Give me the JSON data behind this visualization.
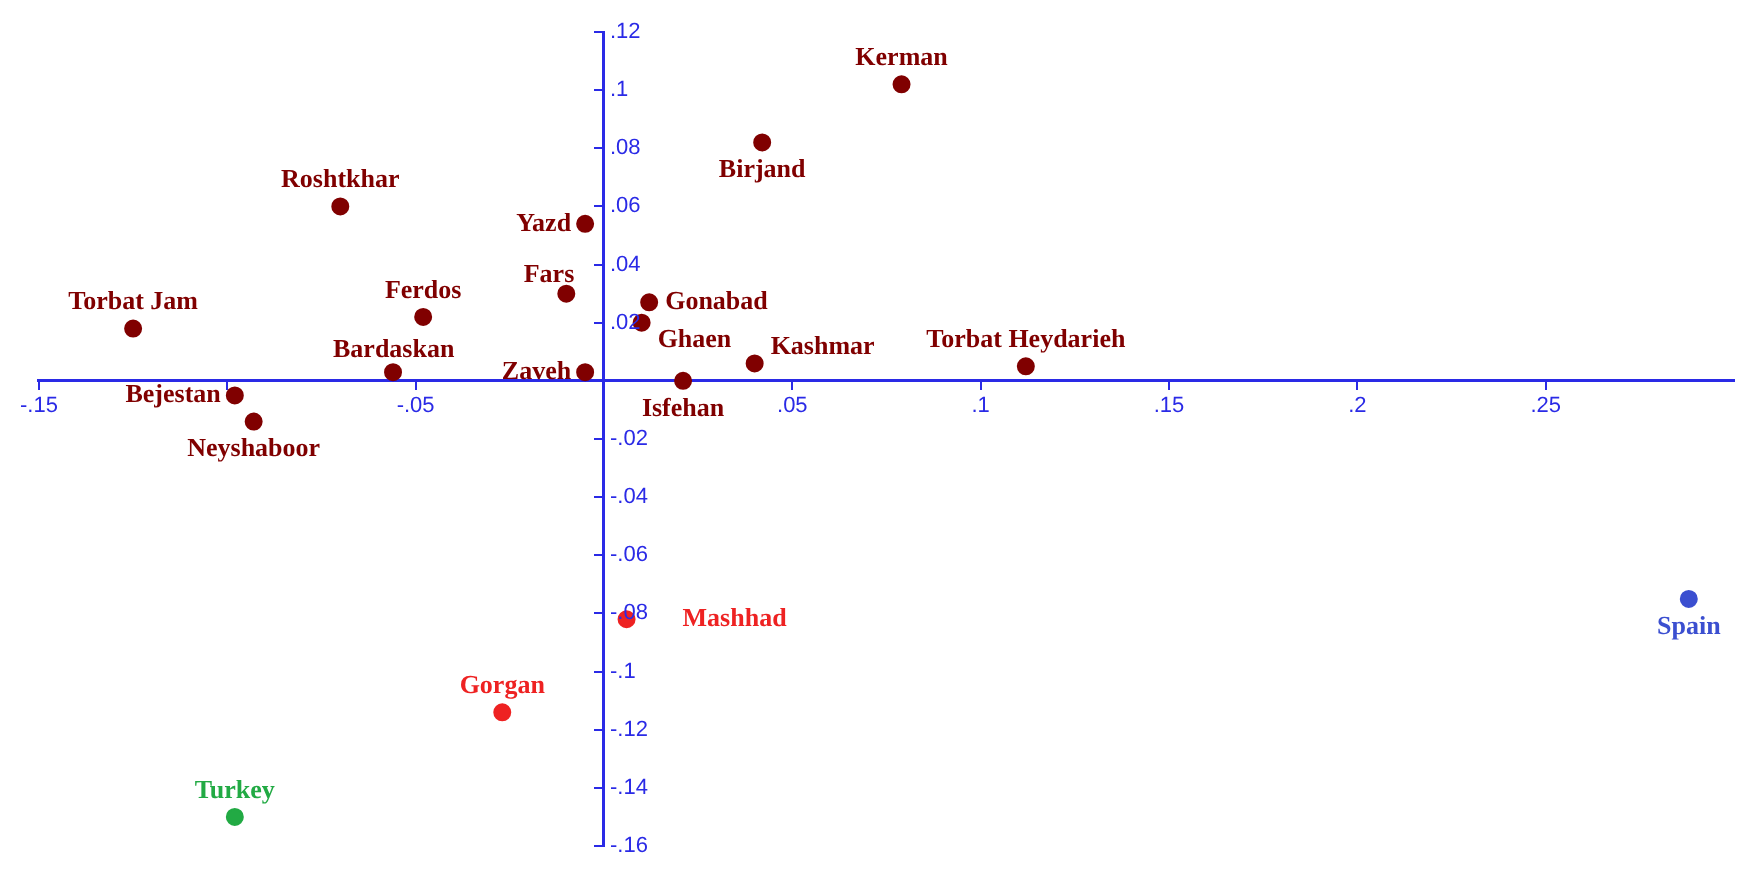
{
  "chart_data": {
    "type": "scatter",
    "xlim": [
      -0.15,
      0.3
    ],
    "ylim": [
      -0.16,
      0.12
    ],
    "xticks": [
      {
        "value": -0.15,
        "label": "-.15"
      },
      {
        "value": -0.1,
        "label": null
      },
      {
        "value": -0.05,
        "label": "-.05"
      },
      {
        "value": 0,
        "label": null
      },
      {
        "value": 0.05,
        "label": ".05"
      },
      {
        "value": 0.1,
        "label": ".1"
      },
      {
        "value": 0.15,
        "label": ".15"
      },
      {
        "value": 0.2,
        "label": ".2"
      },
      {
        "value": 0.25,
        "label": ".25"
      }
    ],
    "yticks": [
      {
        "value": -0.16,
        "label": "-.16"
      },
      {
        "value": -0.14,
        "label": "-.14"
      },
      {
        "value": -0.12,
        "label": "-.12"
      },
      {
        "value": -0.1,
        "label": "-.1"
      },
      {
        "value": -0.08,
        "label": "-.08"
      },
      {
        "value": -0.06,
        "label": "-.06"
      },
      {
        "value": -0.04,
        "label": "-.04"
      },
      {
        "value": -0.02,
        "label": "-.02"
      },
      {
        "value": 0,
        "label": null
      },
      {
        "value": 0.02,
        "label": ".02"
      },
      {
        "value": 0.04,
        "label": ".04"
      },
      {
        "value": 0.06,
        "label": ".06"
      },
      {
        "value": 0.08,
        "label": ".08"
      },
      {
        "value": 0.1,
        "label": ".1"
      },
      {
        "value": 0.12,
        "label": ".12"
      }
    ],
    "grid": false,
    "legend": false,
    "marker": "circle",
    "series": [
      {
        "name": "Kerman",
        "color": "#800000",
        "x": [
          0.079
        ],
        "values": [
          0.102
        ]
      },
      {
        "name": "Birjand",
        "color": "#800000",
        "x": [
          0.042
        ],
        "values": [
          0.082
        ]
      },
      {
        "name": "Roshtkhar",
        "color": "#800000",
        "x": [
          -0.07
        ],
        "values": [
          0.06
        ]
      },
      {
        "name": "Yazd",
        "color": "#800000",
        "x": [
          -0.005
        ],
        "values": [
          0.054
        ]
      },
      {
        "name": "Fars",
        "color": "#800000",
        "x": [
          -0.01
        ],
        "values": [
          0.03
        ]
      },
      {
        "name": "Gonabad",
        "color": "#800000",
        "x": [
          0.012
        ],
        "values": [
          0.027
        ]
      },
      {
        "name": "Ghaen",
        "color": "#800000",
        "x": [
          0.01
        ],
        "values": [
          0.02
        ]
      },
      {
        "name": "Torbat Jam",
        "color": "#800000",
        "x": [
          -0.125
        ],
        "values": [
          0.018
        ]
      },
      {
        "name": "Ferdos",
        "color": "#800000",
        "x": [
          -0.048
        ],
        "values": [
          0.022
        ]
      },
      {
        "name": "Kashmar",
        "color": "#800000",
        "x": [
          0.04
        ],
        "values": [
          0.006
        ]
      },
      {
        "name": "Torbat Heydarieh",
        "color": "#800000",
        "x": [
          0.112
        ],
        "values": [
          0.005
        ]
      },
      {
        "name": "Bardaskan",
        "color": "#800000",
        "x": [
          -0.056
        ],
        "values": [
          0.003
        ]
      },
      {
        "name": "Zaveh",
        "color": "#800000",
        "x": [
          -0.005
        ],
        "values": [
          0.003
        ]
      },
      {
        "name": "Isfehan",
        "color": "#800000",
        "x": [
          0.021
        ],
        "values": [
          0.0
        ]
      },
      {
        "name": "Bejestan",
        "color": "#800000",
        "x": [
          -0.098
        ],
        "values": [
          -0.005
        ]
      },
      {
        "name": "Neyshaboor",
        "color": "#800000",
        "x": [
          -0.093
        ],
        "values": [
          -0.014
        ]
      },
      {
        "name": "Mashhad",
        "color": "#ee2222",
        "x": [
          0.006
        ],
        "values": [
          -0.082
        ]
      },
      {
        "name": "Gorgan",
        "color": "#ee2222",
        "x": [
          -0.027
        ],
        "values": [
          -0.114
        ]
      },
      {
        "name": "Turkey",
        "color": "#22aa44",
        "x": [
          -0.098
        ],
        "values": [
          -0.15
        ]
      },
      {
        "name": "Spain",
        "color": "#3b4fd0",
        "x": [
          0.288
        ],
        "values": [
          -0.075
        ]
      }
    ]
  }
}
